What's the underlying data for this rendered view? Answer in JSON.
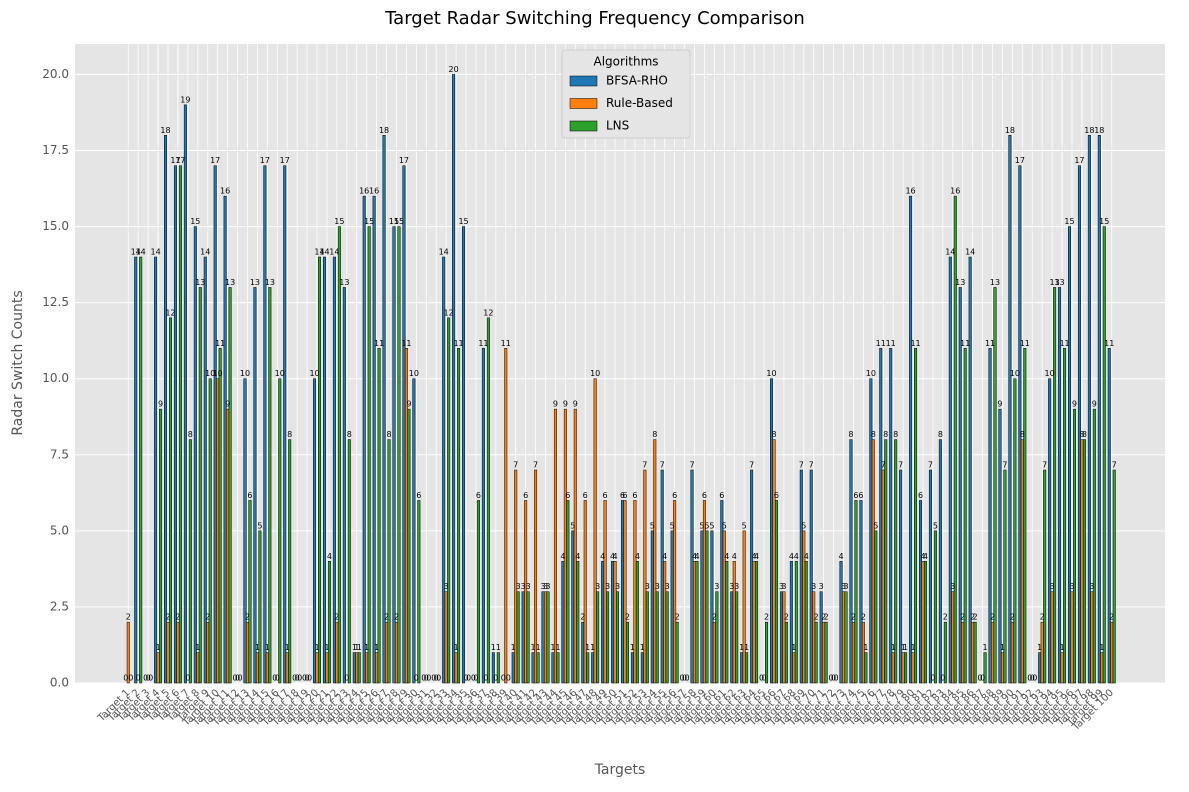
{
  "chart_data": {
    "type": "bar",
    "title": "Target Radar Switching Frequency Comparison",
    "x_label": "Targets",
    "y_label": "Radar Switch Counts",
    "legend_title": "Algorithms",
    "legend": "upper center",
    "grid": true,
    "categories": [
      "Target 1",
      "Target 2",
      "Target 3",
      "Target 4",
      "Target 5",
      "Target 6",
      "Target 7",
      "Target 8",
      "Target 9",
      "Target 10",
      "Target 11",
      "Target 12",
      "Target 13",
      "Target 14",
      "Target 15",
      "Target 16",
      "Target 17",
      "Target 18",
      "Target 19",
      "Target 20",
      "Target 21",
      "Target 22",
      "Target 23",
      "Target 24",
      "Target 25",
      "Target 26",
      "Target 27",
      "Target 28",
      "Target 29",
      "Target 30",
      "Target 31",
      "Target 32",
      "Target 33",
      "Target 34",
      "Target 35",
      "Target 36",
      "Target 37",
      "Target 38",
      "Target 39",
      "Target 40",
      "Target 41",
      "Target 42",
      "Target 43",
      "Target 44",
      "Target 45",
      "Target 46",
      "Target 47",
      "Target 48",
      "Target 49",
      "Target 50",
      "Target 51",
      "Target 52",
      "Target 53",
      "Target 54",
      "Target 55",
      "Target 56",
      "Target 57",
      "Target 58",
      "Target 59",
      "Target 60",
      "Target 61",
      "Target 62",
      "Target 63",
      "Target 64",
      "Target 65",
      "Target 66",
      "Target 67",
      "Target 68",
      "Target 69",
      "Target 70",
      "Target 71",
      "Target 72",
      "Target 73",
      "Target 74",
      "Target 75",
      "Target 76",
      "Target 77",
      "Target 78",
      "Target 79",
      "Target 80",
      "Target 81",
      "Target 82",
      "Target 83",
      "Target 84",
      "Target 85",
      "Target 86",
      "Target 87",
      "Target 88",
      "Target 89",
      "Target 90",
      "Target 91",
      "Target 92",
      "Target 93",
      "Target 94",
      "Target 95",
      "Target 96",
      "Target 97",
      "Target 98",
      "Target 99",
      "Target 100"
    ],
    "series": [
      {
        "name": "BFSA-RHO",
        "color": "#1f77b4",
        "values": [
          0,
          14,
          0,
          14,
          18,
          17,
          19,
          15,
          14,
          17,
          16,
          0,
          10,
          13,
          17,
          0,
          17,
          0,
          0,
          10,
          14,
          14,
          13,
          1,
          16,
          16,
          18,
          15,
          17,
          10,
          0,
          0,
          14,
          20,
          15,
          0,
          11,
          1,
          0,
          1,
          3,
          1,
          3,
          1,
          4,
          5,
          2,
          1,
          4,
          4,
          6,
          1,
          1,
          5,
          7,
          5,
          0,
          7,
          5,
          5,
          6,
          3,
          1,
          7,
          0,
          10,
          3,
          4,
          7,
          7,
          3,
          0,
          4,
          8,
          6,
          10,
          11,
          11,
          7,
          16,
          6,
          7,
          8,
          14,
          13,
          14,
          0,
          11,
          9,
          18,
          17,
          0,
          1,
          10,
          13,
          15,
          17,
          18,
          18,
          11
        ]
      },
      {
        "name": "Rule-Based",
        "color": "#ff7f0e",
        "values": [
          2,
          0,
          0,
          1,
          2,
          2,
          0,
          1,
          2,
          10,
          9,
          0,
          2,
          1,
          1,
          0,
          1,
          0,
          0,
          1,
          1,
          2,
          0,
          1,
          1,
          1,
          2,
          2,
          11,
          0,
          0,
          0,
          3,
          1,
          0,
          0,
          0,
          0,
          11,
          7,
          6,
          7,
          3,
          9,
          9,
          9,
          6,
          10,
          6,
          4,
          6,
          6,
          7,
          8,
          4,
          6,
          0,
          4,
          6,
          2,
          5,
          4,
          5,
          4,
          0,
          8,
          3,
          1,
          5,
          3,
          2,
          0,
          3,
          2,
          2,
          8,
          7,
          1,
          1,
          1,
          4,
          0,
          0,
          3,
          2,
          2,
          0,
          2,
          1,
          2,
          8,
          0,
          2,
          3,
          1,
          3,
          8,
          3,
          1,
          2
        ]
      },
      {
        "name": "LNS",
        "color": "#2ca02c",
        "values": [
          0,
          14,
          0,
          9,
          12,
          17,
          8,
          13,
          10,
          11,
          13,
          0,
          6,
          5,
          13,
          10,
          8,
          0,
          0,
          14,
          4,
          15,
          8,
          1,
          15,
          11,
          8,
          15,
          9,
          6,
          0,
          0,
          12,
          11,
          0,
          6,
          12,
          1,
          0,
          3,
          3,
          1,
          3,
          1,
          6,
          4,
          1,
          3,
          3,
          3,
          2,
          4,
          3,
          3,
          3,
          2,
          0,
          4,
          5,
          3,
          4,
          3,
          1,
          4,
          2,
          6,
          2,
          4,
          4,
          2,
          2,
          0,
          3,
          6,
          1,
          5,
          8,
          8,
          1,
          11,
          4,
          5,
          2,
          16,
          11,
          2,
          1,
          13,
          7,
          10,
          11,
          0,
          7,
          13,
          11,
          9,
          8,
          9,
          15,
          7
        ]
      }
    ],
    "ylim": [
      0,
      21
    ],
    "yticks": [
      {
        "value": 0,
        "label": "0.0"
      },
      {
        "value": 2.5,
        "label": "2.5"
      },
      {
        "value": 5,
        "label": "5.0"
      },
      {
        "value": 7.5,
        "label": "7.5"
      },
      {
        "value": 10,
        "label": "10.0"
      },
      {
        "value": 12.5,
        "label": "12.5"
      },
      {
        "value": 15,
        "label": "15.0"
      },
      {
        "value": 17.5,
        "label": "17.5"
      },
      {
        "value": 20,
        "label": "20.0"
      }
    ]
  }
}
